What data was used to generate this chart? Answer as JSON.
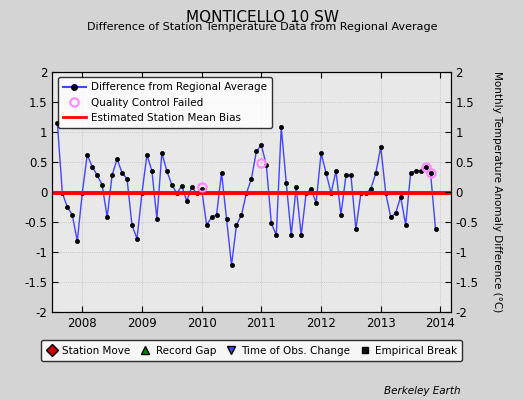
{
  "title": "MONTICELLO 10 SW",
  "subtitle": "Difference of Station Temperature Data from Regional Average",
  "ylabel": "Monthly Temperature Anomaly Difference (°C)",
  "ylim": [
    -2,
    2
  ],
  "xlim": [
    2007.5,
    2014.17
  ],
  "xticks": [
    2008,
    2009,
    2010,
    2011,
    2012,
    2013,
    2014
  ],
  "yticks": [
    -2,
    -1.5,
    -1,
    -0.5,
    0,
    0.5,
    1,
    1.5,
    2
  ],
  "bias_value": -0.02,
  "background_color": "#e8e8e8",
  "fig_background": "#d4d4d4",
  "line_color": "#4444ff",
  "bias_color": "#ff0000",
  "credit": "Berkeley Earth",
  "time_series": [
    [
      2007.583,
      1.15
    ],
    [
      2007.667,
      -0.02
    ],
    [
      2007.75,
      -0.25
    ],
    [
      2007.833,
      -0.38
    ],
    [
      2007.917,
      -0.82
    ],
    [
      2008.0,
      -0.02
    ],
    [
      2008.083,
      0.62
    ],
    [
      2008.167,
      0.42
    ],
    [
      2008.25,
      0.28
    ],
    [
      2008.333,
      0.12
    ],
    [
      2008.417,
      -0.42
    ],
    [
      2008.5,
      0.28
    ],
    [
      2008.583,
      0.55
    ],
    [
      2008.667,
      0.32
    ],
    [
      2008.75,
      0.22
    ],
    [
      2008.833,
      -0.55
    ],
    [
      2008.917,
      -0.78
    ],
    [
      2009.0,
      -0.02
    ],
    [
      2009.083,
      0.62
    ],
    [
      2009.167,
      0.35
    ],
    [
      2009.25,
      -0.45
    ],
    [
      2009.333,
      0.65
    ],
    [
      2009.417,
      0.35
    ],
    [
      2009.5,
      0.12
    ],
    [
      2009.583,
      -0.02
    ],
    [
      2009.667,
      0.1
    ],
    [
      2009.75,
      -0.15
    ],
    [
      2009.833,
      0.08
    ],
    [
      2009.917,
      -0.02
    ],
    [
      2010.0,
      0.05
    ],
    [
      2010.083,
      -0.55
    ],
    [
      2010.167,
      -0.42
    ],
    [
      2010.25,
      -0.38
    ],
    [
      2010.333,
      0.32
    ],
    [
      2010.417,
      -0.45
    ],
    [
      2010.5,
      -1.22
    ],
    [
      2010.583,
      -0.55
    ],
    [
      2010.667,
      -0.38
    ],
    [
      2010.75,
      -0.02
    ],
    [
      2010.833,
      0.22
    ],
    [
      2010.917,
      0.68
    ],
    [
      2011.0,
      0.78
    ],
    [
      2011.083,
      0.45
    ],
    [
      2011.167,
      -0.52
    ],
    [
      2011.25,
      -0.72
    ],
    [
      2011.333,
      1.08
    ],
    [
      2011.417,
      0.15
    ],
    [
      2011.5,
      -0.72
    ],
    [
      2011.583,
      0.08
    ],
    [
      2011.667,
      -0.72
    ],
    [
      2011.75,
      -0.02
    ],
    [
      2011.833,
      0.05
    ],
    [
      2011.917,
      -0.18
    ],
    [
      2012.0,
      0.65
    ],
    [
      2012.083,
      0.32
    ],
    [
      2012.167,
      -0.02
    ],
    [
      2012.25,
      0.35
    ],
    [
      2012.333,
      -0.38
    ],
    [
      2012.417,
      0.28
    ],
    [
      2012.5,
      0.28
    ],
    [
      2012.583,
      -0.62
    ],
    [
      2012.667,
      -0.02
    ],
    [
      2012.75,
      -0.02
    ],
    [
      2012.833,
      0.05
    ],
    [
      2012.917,
      0.32
    ],
    [
      2013.0,
      0.75
    ],
    [
      2013.083,
      -0.02
    ],
    [
      2013.167,
      -0.42
    ],
    [
      2013.25,
      -0.35
    ],
    [
      2013.333,
      -0.08
    ],
    [
      2013.417,
      -0.55
    ],
    [
      2013.5,
      0.32
    ],
    [
      2013.583,
      0.35
    ],
    [
      2013.667,
      0.35
    ],
    [
      2013.75,
      0.42
    ],
    [
      2013.833,
      0.32
    ],
    [
      2013.917,
      -0.62
    ]
  ],
  "qc_failed": [
    [
      2010.0,
      0.08
    ],
    [
      2011.0,
      0.48
    ],
    [
      2013.75,
      0.42
    ],
    [
      2013.833,
      0.32
    ]
  ]
}
